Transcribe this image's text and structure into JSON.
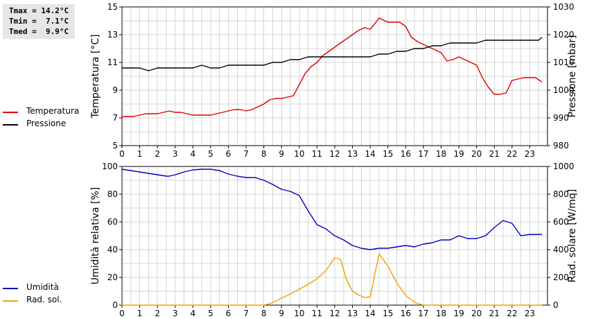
{
  "stats": {
    "tmax": "Tmax = 14.2°C",
    "tmin": "Tmin =  7.1°C",
    "tmed": "Tmed =  9.9°C"
  },
  "chart_data": [
    {
      "type": "line",
      "ylabel": "Temperatura [°C]",
      "y2label": "Pressione [mbar]",
      "xlim": [
        0,
        24
      ],
      "xticks": [
        0,
        1,
        2,
        3,
        4,
        5,
        6,
        7,
        8,
        9,
        10,
        11,
        12,
        13,
        14,
        15,
        16,
        17,
        18,
        19,
        20,
        21,
        22,
        23
      ],
      "ylim": [
        5,
        15
      ],
      "yticks": [
        5,
        7,
        9,
        11,
        13,
        15
      ],
      "y2lim": [
        980,
        1030
      ],
      "y2ticks": [
        980,
        990,
        1000,
        1010,
        1020,
        1030
      ],
      "grid": true,
      "legend": [
        "Temperatura",
        "Pressione"
      ],
      "series": [
        {
          "name": "Temperatura",
          "axis": "left",
          "color": "#dd0000",
          "x": [
            0,
            0.67,
            1,
            1.33,
            1.67,
            2,
            2.33,
            2.67,
            3,
            3.33,
            3.67,
            4,
            4.33,
            4.67,
            5,
            5.33,
            5.67,
            6,
            6.33,
            6.67,
            7,
            7.33,
            7.67,
            8,
            8.33,
            8.67,
            9,
            9.33,
            9.67,
            10,
            10.33,
            10.67,
            11,
            11.33,
            11.67,
            12,
            12.33,
            12.67,
            13,
            13.33,
            13.67,
            14,
            14.33,
            14.5,
            14.67,
            15,
            15.33,
            15.67,
            16,
            16.33,
            16.67,
            17,
            17.33,
            17.67,
            18,
            18.33,
            18.67,
            19,
            19.33,
            19.67,
            20,
            20.33,
            20.67,
            21,
            21.33,
            21.67,
            22,
            22.33,
            22.67,
            23,
            23.33,
            23.67
          ],
          "values": [
            7.1,
            7.1,
            7.2,
            7.3,
            7.3,
            7.3,
            7.4,
            7.5,
            7.4,
            7.4,
            7.3,
            7.2,
            7.2,
            7.2,
            7.2,
            7.3,
            7.4,
            7.5,
            7.6,
            7.6,
            7.5,
            7.6,
            7.8,
            8.0,
            8.3,
            8.4,
            8.4,
            8.5,
            8.6,
            9.4,
            10.2,
            10.7,
            11.0,
            11.5,
            11.8,
            12.1,
            12.4,
            12.7,
            13.0,
            13.3,
            13.5,
            13.4,
            13.9,
            14.2,
            14.1,
            13.9,
            13.9,
            13.9,
            13.6,
            12.8,
            12.5,
            12.3,
            12.1,
            11.9,
            11.7,
            11.1,
            11.2,
            11.4,
            11.2,
            11.0,
            10.8,
            9.9,
            9.2,
            8.7,
            8.7,
            8.8,
            9.7,
            9.8,
            9.9,
            9.9,
            9.9,
            9.6
          ]
        },
        {
          "name": "Pressione",
          "axis": "right",
          "color": "#000000",
          "x": [
            0,
            1,
            1.5,
            2,
            3,
            4,
            4.5,
            5,
            5.5,
            6,
            7,
            8,
            8.5,
            9,
            9.5,
            10,
            10.5,
            11,
            12,
            13,
            14,
            14.5,
            15,
            15.5,
            16,
            16.5,
            17,
            17.5,
            18,
            18.5,
            19,
            20,
            20.5,
            21,
            22,
            23,
            23.5,
            23.67
          ],
          "values": [
            1008,
            1008,
            1007,
            1008,
            1008,
            1008,
            1009,
            1008,
            1008,
            1009,
            1009,
            1009,
            1010,
            1010,
            1011,
            1011,
            1012,
            1012,
            1012,
            1012,
            1012,
            1013,
            1013,
            1014,
            1014,
            1015,
            1015,
            1016,
            1016,
            1017,
            1017,
            1017,
            1018,
            1018,
            1018,
            1018,
            1018,
            1019
          ]
        }
      ]
    },
    {
      "type": "line",
      "ylabel": "Umidità relativa [%]",
      "y2label": "Rad. solare [W/mq]",
      "xlim": [
        0,
        24
      ],
      "xticks": [
        0,
        1,
        2,
        3,
        4,
        5,
        6,
        7,
        8,
        9,
        10,
        11,
        12,
        13,
        14,
        15,
        16,
        17,
        18,
        19,
        20,
        21,
        22,
        23
      ],
      "ylim": [
        0,
        100
      ],
      "yticks": [
        0,
        20,
        40,
        60,
        80,
        100
      ],
      "y2lim": [
        0,
        1000
      ],
      "y2ticks": [
        0,
        200,
        400,
        600,
        800,
        1000
      ],
      "grid": true,
      "legend": [
        "Umidità",
        "Rad. sol."
      ],
      "series": [
        {
          "name": "Umidità",
          "axis": "left",
          "color": "#0000bb",
          "x": [
            0,
            0.5,
            1,
            1.5,
            2,
            2.5,
            2.67,
            3,
            3.5,
            4,
            4.5,
            5,
            5.5,
            6,
            6.5,
            7,
            7.5,
            8,
            8.5,
            9,
            9.5,
            10,
            10.5,
            11,
            11.5,
            12,
            12.5,
            13,
            13.5,
            14,
            14.5,
            15,
            15.5,
            16,
            16.5,
            17,
            17.5,
            18,
            18.5,
            19,
            19.5,
            20,
            20.5,
            21,
            21.5,
            22,
            22.5,
            23,
            23.67
          ],
          "values": [
            98,
            97,
            96,
            95,
            94,
            93,
            93,
            94,
            96,
            97.5,
            98,
            98,
            97,
            94.5,
            93,
            92,
            92,
            90,
            87,
            83.5,
            82,
            79,
            68,
            58,
            55,
            50,
            47,
            43,
            41,
            40,
            41,
            41,
            42,
            43,
            42,
            44,
            45,
            47,
            47,
            50,
            48,
            48,
            50,
            56,
            61,
            59,
            50,
            51,
            51
          ]
        },
        {
          "name": "Rad. sol.",
          "axis": "right",
          "color": "#f0a000",
          "x": [
            0,
            1,
            2,
            3,
            4,
            5,
            6,
            7,
            8,
            8.33,
            8.67,
            9,
            9.5,
            10,
            10.5,
            11,
            11.5,
            12,
            12.33,
            12.67,
            13,
            13.33,
            13.67,
            14,
            14.5,
            15,
            15.5,
            16,
            16.5,
            17,
            18,
            19,
            20,
            21,
            22,
            23,
            23.67
          ],
          "values": [
            0,
            0,
            0,
            0,
            0,
            0,
            0,
            0,
            0,
            10,
            30,
            50,
            80,
            115,
            150,
            190,
            250,
            340,
            330,
            180,
            100,
            75,
            55,
            60,
            370,
            280,
            160,
            70,
            20,
            0,
            0,
            0,
            0,
            0,
            0,
            0,
            0
          ]
        }
      ]
    }
  ]
}
